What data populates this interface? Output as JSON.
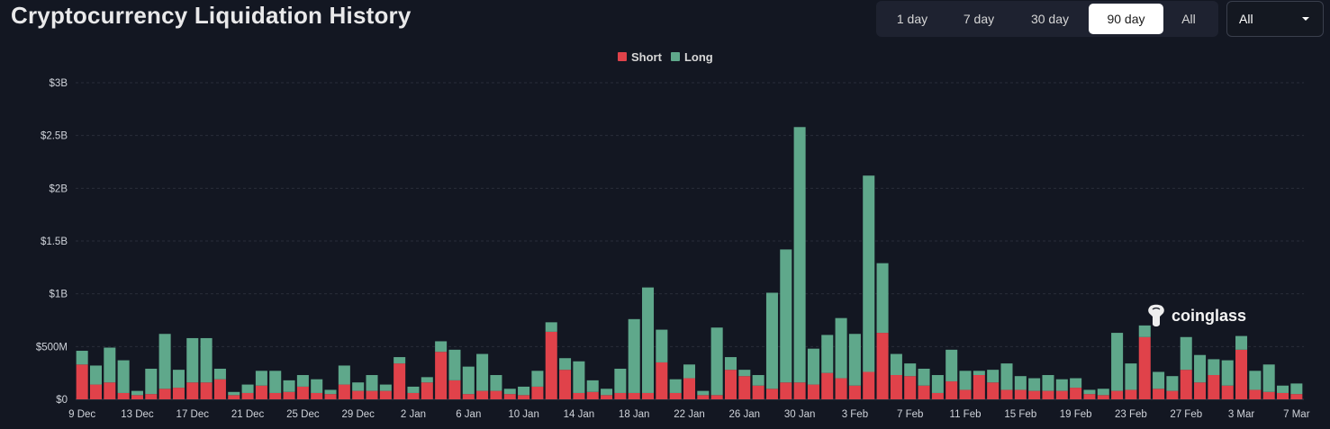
{
  "header": {
    "title": "Cryptocurrency Liquidation History",
    "range_buttons": [
      "1 day",
      "7 day",
      "30 day",
      "90 day",
      "All"
    ],
    "active_range": "90 day",
    "coin_select_value": "All"
  },
  "watermark": "coinglass",
  "colors": {
    "short": "#e0424a",
    "long": "#5fa88b",
    "background": "#131722",
    "grid": "#2a2e39"
  },
  "chart_data": {
    "type": "bar",
    "stacked": true,
    "title": "",
    "xlabel": "",
    "ylabel": "",
    "ylim": [
      0,
      3000000000
    ],
    "y_ticks": [
      0,
      500000000,
      1000000000,
      1500000000,
      2000000000,
      2500000000,
      3000000000
    ],
    "y_tick_labels": [
      "$0",
      "$500M",
      "$1B",
      "$1.5B",
      "$2B",
      "$2.5B",
      "$3B"
    ],
    "x_tick_labels": [
      "9 Dec",
      "13 Dec",
      "17 Dec",
      "21 Dec",
      "25 Dec",
      "29 Dec",
      "2 Jan",
      "6 Jan",
      "10 Jan",
      "14 Jan",
      "18 Jan",
      "22 Jan",
      "26 Jan",
      "30 Jan",
      "3 Feb",
      "7 Feb",
      "11 Feb",
      "15 Feb",
      "19 Feb",
      "23 Feb",
      "27 Feb",
      "3 Mar",
      "7 Mar"
    ],
    "x_tick_every": 4,
    "legend": [
      "Short",
      "Long"
    ],
    "series": [
      {
        "name": "Short",
        "values": [
          330,
          140,
          160,
          60,
          40,
          50,
          100,
          110,
          160,
          160,
          190,
          40,
          60,
          130,
          60,
          70,
          120,
          60,
          50,
          140,
          80,
          80,
          80,
          340,
          60,
          160,
          450,
          180,
          50,
          80,
          80,
          50,
          40,
          120,
          640,
          280,
          60,
          70,
          40,
          60,
          60,
          60,
          350,
          60,
          200,
          40,
          40,
          280,
          220,
          130,
          100,
          160,
          160,
          140,
          250,
          200,
          130,
          260,
          630,
          230,
          220,
          130,
          60,
          170,
          90,
          230,
          160,
          90,
          90,
          80,
          80,
          80,
          110,
          50,
          40,
          80,
          90,
          590,
          100,
          80,
          280,
          160,
          230,
          130,
          470,
          90,
          70,
          60,
          50
        ]
      },
      {
        "name": "Long",
        "values": [
          130,
          180,
          330,
          310,
          40,
          240,
          520,
          170,
          420,
          420,
          100,
          30,
          80,
          140,
          210,
          110,
          110,
          130,
          40,
          180,
          80,
          150,
          60,
          60,
          60,
          50,
          100,
          290,
          260,
          350,
          150,
          50,
          80,
          150,
          90,
          110,
          300,
          110,
          60,
          230,
          700,
          1000,
          310,
          130,
          130,
          40,
          640,
          120,
          60,
          100,
          910,
          1260,
          2420,
          340,
          360,
          570,
          490,
          1860,
          660,
          200,
          120,
          160,
          170,
          300,
          180,
          40,
          120,
          250,
          130,
          120,
          150,
          110,
          90,
          40,
          60,
          550,
          250,
          110,
          160,
          140,
          310,
          260,
          150,
          240,
          130,
          180,
          260,
          70,
          100
        ]
      }
    ],
    "value_unit": "$M"
  }
}
